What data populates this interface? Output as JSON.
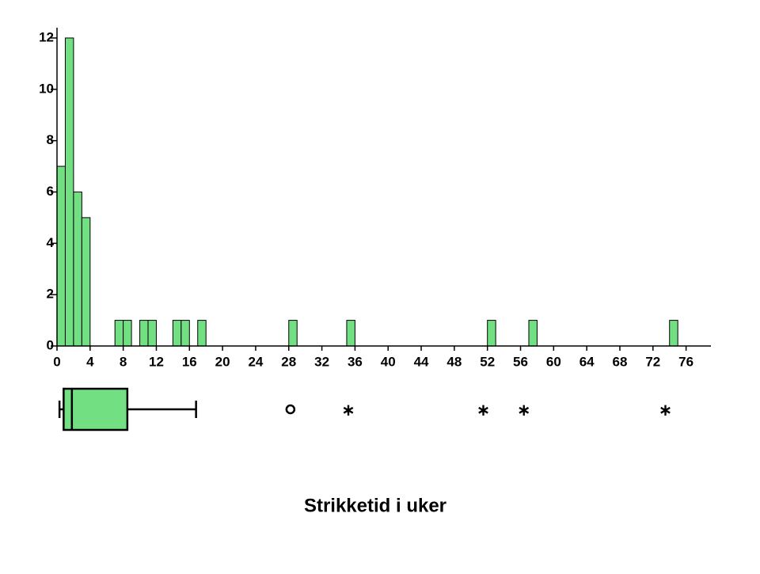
{
  "chart_data": {
    "type": "histogram",
    "xlabel": "Strikketid i uker",
    "color": "#72df82",
    "bins": [
      0,
      1,
      2,
      3,
      4,
      5,
      6,
      7,
      8,
      9,
      10,
      11,
      12,
      13,
      14,
      15,
      16,
      17,
      18,
      19,
      20,
      21,
      22,
      23,
      24,
      25,
      26,
      27,
      28,
      29,
      30,
      31,
      32,
      33,
      34,
      35,
      36,
      37,
      38,
      39,
      40,
      41,
      42,
      43,
      44,
      45,
      46,
      47,
      48,
      49,
      50,
      51,
      52,
      53,
      54,
      55,
      56,
      57,
      58,
      59,
      60,
      61,
      62,
      63,
      64,
      65,
      66,
      67,
      68,
      69,
      70,
      71,
      72,
      73,
      74,
      75
    ],
    "counts": [
      7,
      12,
      6,
      5,
      0,
      0,
      0,
      1,
      1,
      0,
      1,
      1,
      0,
      0,
      1,
      1,
      0,
      1,
      0,
      0,
      0,
      0,
      0,
      0,
      0,
      0,
      0,
      0,
      1,
      0,
      0,
      0,
      0,
      0,
      0,
      1,
      0,
      0,
      0,
      0,
      0,
      0,
      0,
      0,
      0,
      0,
      0,
      0,
      0,
      0,
      0,
      0,
      1,
      0,
      0,
      0,
      0,
      1,
      0,
      0,
      0,
      0,
      0,
      0,
      0,
      0,
      0,
      0,
      0,
      0,
      0,
      0,
      0,
      0,
      1
    ],
    "xlim": [
      0,
      79
    ],
    "xticks": [
      0,
      4,
      8,
      12,
      16,
      20,
      24,
      28,
      32,
      36,
      40,
      44,
      48,
      52,
      56,
      60,
      64,
      68,
      72,
      76
    ],
    "ylim": [
      0,
      12.4
    ],
    "yticks": [
      0,
      2,
      4,
      6,
      8,
      10,
      12
    ],
    "boxplot": {
      "min": 0.3,
      "q1": 0.8,
      "median": 1.8,
      "q3": 8.5,
      "max": 16.8,
      "outliers": [
        28.2
      ],
      "extremes": [
        35.2,
        51.5,
        56.4,
        73.5
      ]
    }
  }
}
